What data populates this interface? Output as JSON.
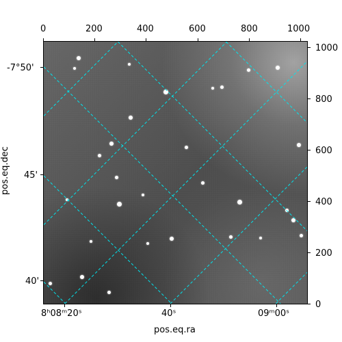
{
  "figure": {
    "top_axis": {
      "ticks": [
        "0",
        "200",
        "400",
        "600",
        "800",
        "1000"
      ]
    },
    "right_axis": {
      "ticks": [
        "1000",
        "800",
        "600",
        "400",
        "200",
        "0"
      ]
    },
    "left_axis": {
      "ticks": [
        "-7°50'",
        "45'",
        "40'"
      ],
      "title": "pos.eq.dec"
    },
    "bottom_axis": {
      "ticks": [
        "8ʰ08ᵐ20ˢ",
        "40ˢ",
        "09ᵐ00ˢ"
      ],
      "title": "pos.eq.ra"
    },
    "grid_color": "#00e5ee",
    "grid_style": "dashed",
    "background": "#ffffff"
  }
}
